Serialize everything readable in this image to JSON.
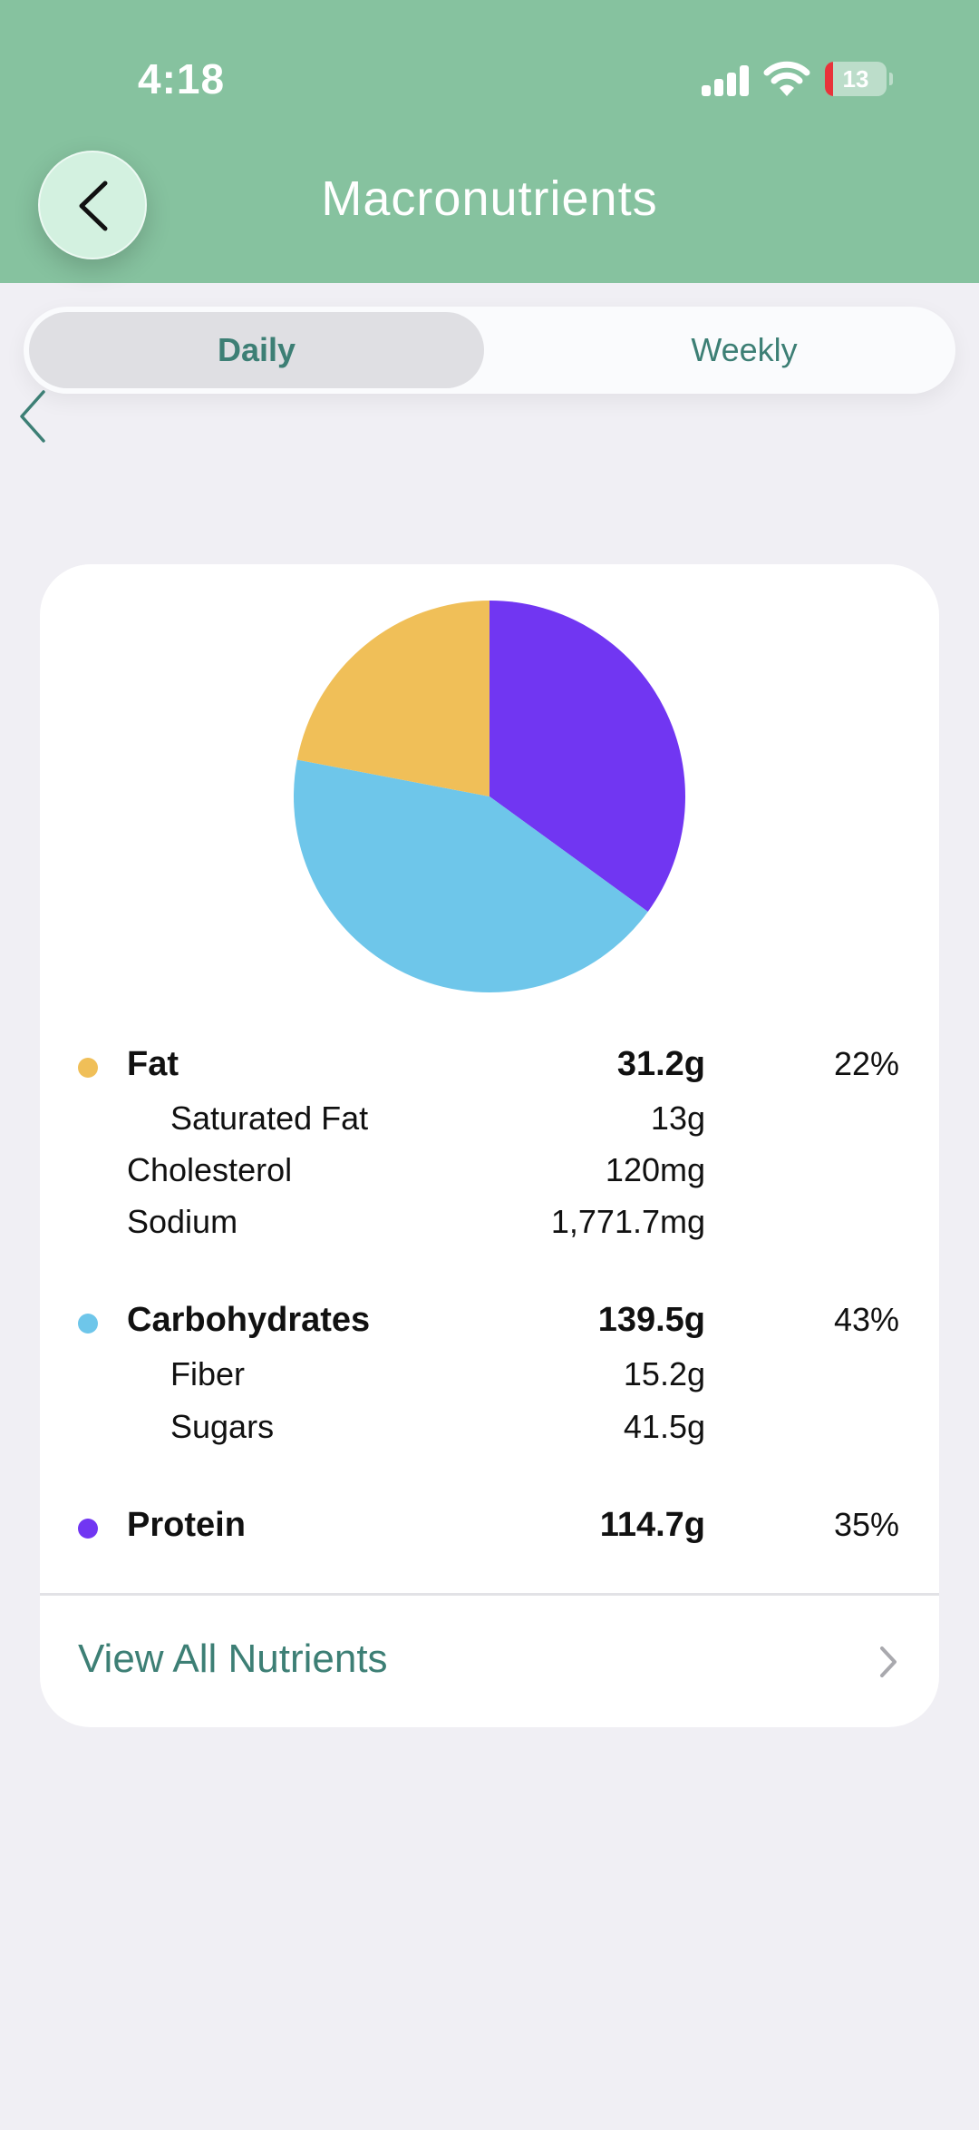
{
  "status_bar": {
    "time": "4:18",
    "battery": "13",
    "battery_level": 0.13,
    "battery_color": "#e8333a"
  },
  "header": {
    "title": "Macronutrients",
    "back_icon": "chevron-left-icon",
    "background": "#86c29f"
  },
  "segmented": {
    "options": [
      "Daily",
      "Weekly"
    ],
    "selected": "Daily"
  },
  "nav": {
    "prev_icon": "chevron-left-icon"
  },
  "chart_data": {
    "type": "pie",
    "slices": [
      {
        "label": "Fat",
        "value": 22,
        "color": "#f0bf58"
      },
      {
        "label": "Carbohydrates",
        "value": 43,
        "color": "#6ec6ea"
      },
      {
        "label": "Protein",
        "value": 35,
        "color": "#7136f2"
      }
    ]
  },
  "nutrients": {
    "fat": {
      "label": "Fat",
      "amount": "31.2g",
      "percent": "22%",
      "color": "#f0bf58",
      "saturated": {
        "label": "Saturated Fat",
        "amount": "13g"
      },
      "cholesterol": {
        "label": "Cholesterol",
        "amount": "120mg"
      },
      "sodium": {
        "label": "Sodium",
        "amount": "1,771.7mg"
      }
    },
    "carbs": {
      "label": "Carbohydrates",
      "amount": "139.5g",
      "percent": "43%",
      "color": "#6ec6ea",
      "fiber": {
        "label": "Fiber",
        "amount": "15.2g"
      },
      "sugars": {
        "label": "Sugars",
        "amount": "41.5g"
      }
    },
    "protein": {
      "label": "Protein",
      "amount": "114.7g",
      "percent": "35%",
      "color": "#7136f2"
    }
  },
  "footer": {
    "view_all": "View All Nutrients",
    "chevron_icon": "chevron-right-icon"
  }
}
